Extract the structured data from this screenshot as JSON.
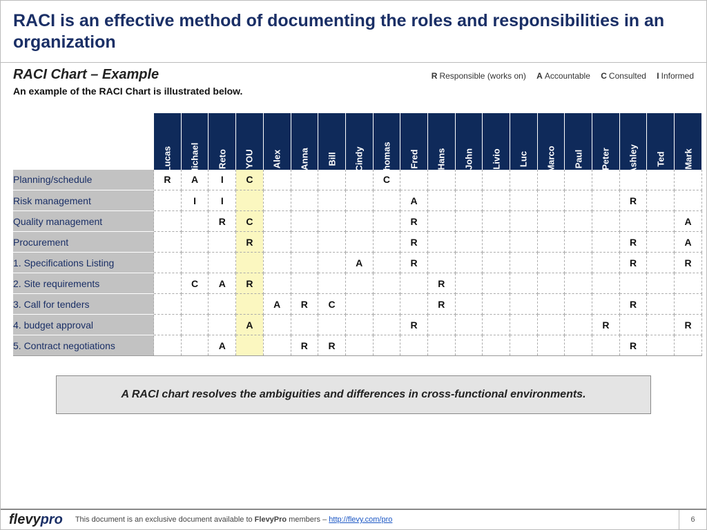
{
  "title": "RACI is an effective method of documenting the roles and responsibilities in an organization",
  "subtitle": "RACI Chart – Example",
  "subdesc": "An example of the RACI Chart is illustrated below.",
  "legend": {
    "r_key": "R",
    "r_label": "Responsible (works on)",
    "a_key": "A",
    "a_label": "Accountable",
    "c_key": "C",
    "c_label": "Consulted",
    "i_key": "I",
    "i_label": "Informed"
  },
  "colors": {
    "header_bg": "#0f2a5a",
    "rowlabel_bg": "#c2c2c2",
    "rowlabel_text": "#1a2f66",
    "you_highlight": "#fbf7c0",
    "grid_dash": "#aaaaaa",
    "title_color": "#1a2f66",
    "callout_bg": "#e4e4e4"
  },
  "people": [
    "Lucas",
    "Michael",
    "Reto",
    "YOU",
    "Alex",
    "Anna",
    "Bill",
    "Cindy",
    "Thomas",
    "Fred",
    "Hans",
    "John",
    "Livio",
    "Luc",
    "Marco",
    "Paul",
    "Peter",
    "Ashley",
    "Ted",
    "Mark"
  ],
  "you_index": 3,
  "rows": [
    {
      "label": "Planning/schedule",
      "cells": [
        "R",
        "A",
        "I",
        "C",
        "",
        "",
        "",
        "",
        "C",
        "",
        "",
        "",
        "",
        "",
        "",
        "",
        "",
        "",
        "",
        ""
      ]
    },
    {
      "label": "Risk management",
      "cells": [
        "",
        "I",
        "I",
        "",
        "",
        "",
        "",
        "",
        "",
        "A",
        "",
        "",
        "",
        "",
        "",
        "",
        "",
        "R",
        "",
        ""
      ]
    },
    {
      "label": "Quality management",
      "cells": [
        "",
        "",
        "R",
        "C",
        "",
        "",
        "",
        "",
        "",
        "R",
        "",
        "",
        "",
        "",
        "",
        "",
        "",
        "",
        "",
        "A"
      ]
    },
    {
      "label": "Procurement",
      "cells": [
        "",
        "",
        "",
        "R",
        "",
        "",
        "",
        "",
        "",
        "R",
        "",
        "",
        "",
        "",
        "",
        "",
        "",
        "R",
        "",
        "A"
      ]
    },
    {
      "label": "1. Specifications Listing",
      "cells": [
        "",
        "",
        "",
        "",
        "",
        "",
        "",
        "A",
        "",
        "R",
        "",
        "",
        "",
        "",
        "",
        "",
        "",
        "R",
        "",
        "R"
      ]
    },
    {
      "label": "2. Site requirements",
      "cells": [
        "",
        "C",
        "A",
        "R",
        "",
        "",
        "",
        "",
        "",
        "",
        "R",
        "",
        "",
        "",
        "",
        "",
        "",
        "",
        "",
        ""
      ]
    },
    {
      "label": "3. Call for tenders",
      "cells": [
        "",
        "",
        "",
        "",
        "A",
        "R",
        "C",
        "",
        "",
        "",
        "R",
        "",
        "",
        "",
        "",
        "",
        "",
        "R",
        "",
        ""
      ]
    },
    {
      "label": "4. budget approval",
      "cells": [
        "",
        "",
        "",
        "A",
        "",
        "",
        "",
        "",
        "",
        "R",
        "",
        "",
        "",
        "",
        "",
        "",
        "R",
        "",
        "",
        "R"
      ]
    },
    {
      "label": "5. Contract negotiations",
      "cells": [
        "",
        "",
        "A",
        "",
        "",
        "R",
        "R",
        "",
        "",
        "",
        "",
        "",
        "",
        "",
        "",
        "",
        "",
        "R",
        "",
        ""
      ]
    }
  ],
  "callout": "A RACI chart resolves the ambiguities and differences in cross-functional environments.",
  "footer": {
    "logo1": "flevy",
    "logo2": "pro",
    "note_pre": "This document is an exclusive document available to ",
    "note_bold": "FlevyPro",
    "note_post": " members – ",
    "link_text": "http://flevy.com/pro",
    "page_num": "6"
  }
}
